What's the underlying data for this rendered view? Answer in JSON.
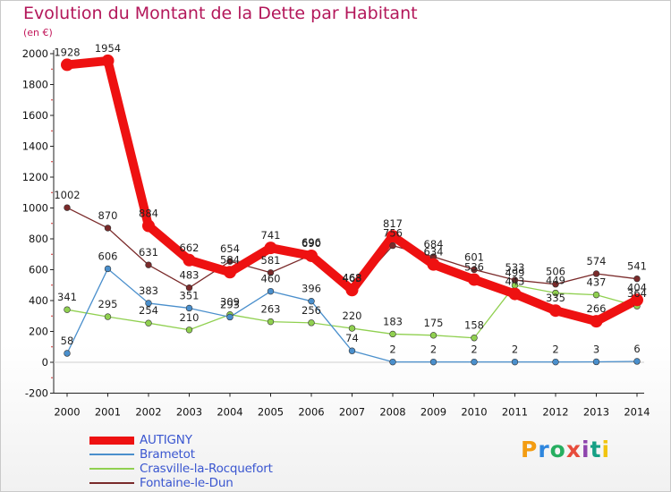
{
  "header": {
    "title": "Evolution du Montant de la Dette par Habitant",
    "subtitle": "(en €)"
  },
  "logo": {
    "text": "Proxiti"
  },
  "chart_data": {
    "type": "line",
    "x": [
      "2000",
      "2001",
      "2002",
      "2003",
      "2004",
      "2005",
      "2006",
      "2007",
      "2008",
      "2009",
      "2010",
      "2011",
      "2012",
      "2013",
      "2014"
    ],
    "ylim": [
      -200,
      2000
    ],
    "yticks": [
      -200,
      0,
      200,
      400,
      600,
      800,
      1000,
      1200,
      1400,
      1600,
      1800,
      2000
    ],
    "grid": false,
    "legend_position": "bottom-left",
    "series": [
      {
        "name": "AUTIGNY",
        "color": "#ee1111",
        "values": [
          1928,
          1954,
          884,
          662,
          584,
          741,
          690,
          468,
          817,
          634,
          536,
          443,
          335,
          266,
          404
        ],
        "labels": [
          "1928",
          "1954",
          "884",
          "662",
          "584",
          "741",
          "690",
          "468",
          "817",
          "634",
          "536",
          "443",
          "335",
          "266",
          "404"
        ]
      },
      {
        "name": "Brametot",
        "color": "#4a8fcc",
        "values": [
          58,
          606,
          383,
          351,
          293,
          460,
          396,
          74,
          2,
          2,
          2,
          2,
          2,
          3,
          6
        ],
        "labels": [
          "58",
          "606",
          "383",
          "351",
          "293",
          "460",
          "396",
          "74",
          "2",
          "2",
          "2",
          "2",
          "2",
          "3",
          "6"
        ]
      },
      {
        "name": "Crasville-la-Rocquefort",
        "color": "#90d050",
        "values": [
          341,
          295,
          254,
          210,
          309,
          263,
          256,
          220,
          183,
          175,
          158,
          499,
          449,
          437,
          364
        ],
        "labels": [
          "341",
          "295",
          "254",
          "210",
          "309",
          "263",
          "256",
          "220",
          "183",
          "175",
          "158",
          "499",
          "449",
          "437",
          "364"
        ]
      },
      {
        "name": "Fontaine-le-Dun",
        "color": "#7a2a2a",
        "values": [
          1002,
          870,
          631,
          483,
          654,
          581,
          696,
          463,
          756,
          684,
          601,
          533,
          506,
          574,
          541
        ],
        "labels": [
          "1002",
          "870",
          "631",
          "483",
          "654",
          "581",
          "696",
          "463",
          "756",
          "684",
          "601",
          "533",
          "506",
          "574",
          "541"
        ]
      }
    ]
  }
}
